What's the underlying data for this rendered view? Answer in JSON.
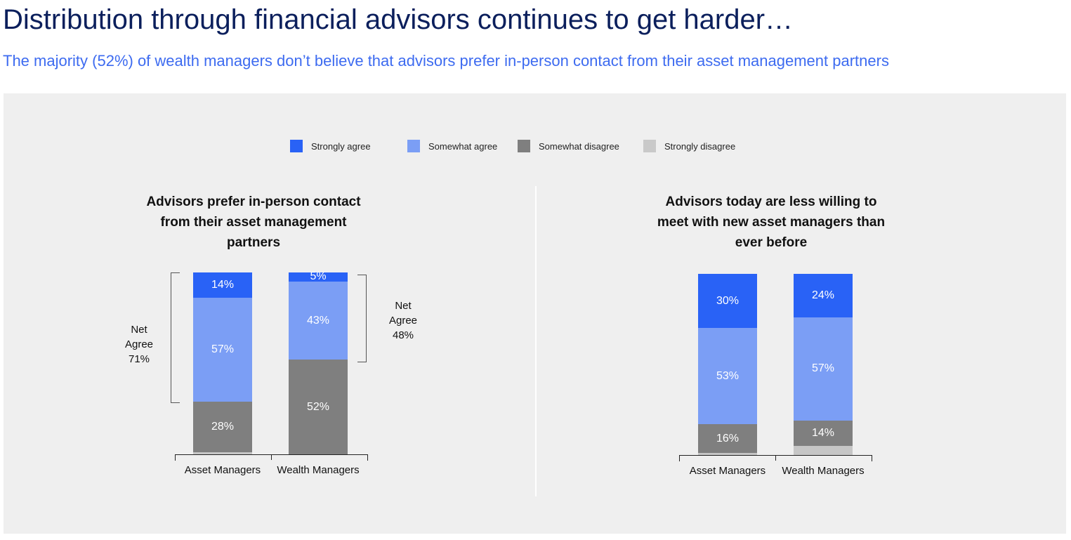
{
  "title": "Distribution through financial advisors continues to get harder…",
  "subtitle": "The majority (52%) of wealth managers don’t believe that advisors prefer in-person contact from their asset management partners",
  "chart_data": [
    {
      "type": "bar",
      "stacked": true,
      "title": "Advisors prefer in-person contact from their asset management partners",
      "categories": [
        "Asset Managers",
        "Wealth Managers"
      ],
      "series": [
        {
          "name": "Strongly agree",
          "color": "#2962f6",
          "values": [
            14,
            5
          ],
          "labels": [
            "14%",
            "5%"
          ]
        },
        {
          "name": "Somewhat agree",
          "color": "#7b9ef5",
          "values": [
            57,
            43
          ],
          "labels": [
            "57%",
            "43%"
          ]
        },
        {
          "name": "Somewhat disagree",
          "color": "#7f7f7f",
          "values": [
            28,
            52
          ],
          "labels": [
            "28%",
            "52%"
          ]
        },
        {
          "name": "Strongly disagree",
          "color": "#c6c6c6",
          "values": [
            1,
            0
          ],
          "labels": [
            "",
            ""
          ]
        }
      ],
      "annotations": [
        {
          "text": [
            "Net",
            "Agree",
            "71%"
          ]
        },
        {
          "text": [
            "Net",
            "Agree",
            "48%"
          ]
        }
      ],
      "ylim": [
        0,
        100
      ],
      "legend": "top"
    },
    {
      "type": "bar",
      "stacked": true,
      "title": "Advisors today are less willing to meet with new asset managers than ever before",
      "categories": [
        "Asset Managers",
        "Wealth Managers"
      ],
      "series": [
        {
          "name": "Strongly agree",
          "color": "#2962f6",
          "values": [
            30,
            24
          ],
          "labels": [
            "30%",
            "24%"
          ]
        },
        {
          "name": "Somewhat agree",
          "color": "#7b9ef5",
          "values": [
            53,
            57
          ],
          "labels": [
            "53%",
            "57%"
          ]
        },
        {
          "name": "Somewhat disagree",
          "color": "#7f7f7f",
          "values": [
            16,
            14
          ],
          "labels": [
            "16%",
            "14%"
          ]
        },
        {
          "name": "Strongly disagree",
          "color": "#c6c6c6",
          "values": [
            1,
            5
          ],
          "labels": [
            "",
            ""
          ]
        }
      ],
      "ylim": [
        0,
        100
      ],
      "legend": "top"
    }
  ]
}
